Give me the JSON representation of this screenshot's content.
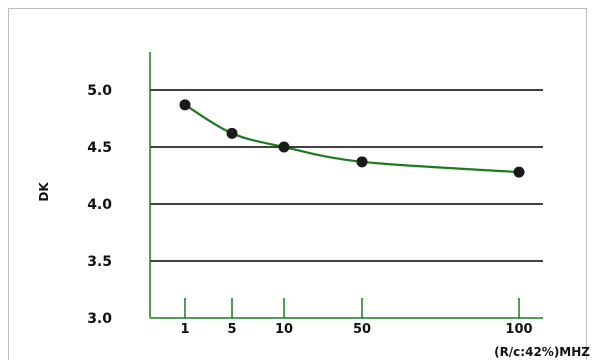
{
  "chart_data": {
    "type": "line",
    "title": "",
    "xlabel": "(R/c:42%)MHZ",
    "ylabel": "DK",
    "x_scale": "categorical-spaced",
    "categories": [
      "1",
      "5",
      "10",
      "50",
      "100"
    ],
    "series": [
      {
        "values": [
          4.87,
          4.62,
          4.5,
          4.37,
          4.28
        ]
      }
    ],
    "ylim": [
      3.0,
      5.0
    ],
    "y_ticks": [
      "5.0",
      "4.5",
      "4.0",
      "3.5",
      "3.0"
    ],
    "grid": "horizontal",
    "legend": "none",
    "colors": {
      "line": "#1e7a1e",
      "axis": "#1e7a1e",
      "grid": "#000000",
      "marker": "#1a1a1a"
    }
  }
}
